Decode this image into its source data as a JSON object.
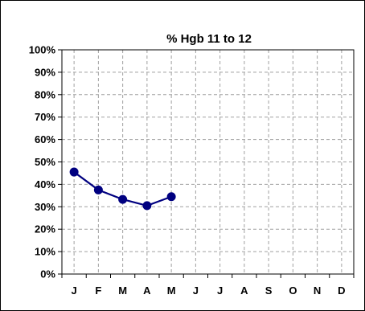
{
  "chart_data": {
    "type": "line",
    "title": "% Hgb 11 to 12",
    "xlabel": "",
    "ylabel": "",
    "categories": [
      "J",
      "F",
      "M",
      "A",
      "M",
      "J",
      "J",
      "A",
      "S",
      "O",
      "N",
      "D"
    ],
    "series": [
      {
        "values": [
          45.5,
          37.5,
          33.3,
          30.5,
          34.5,
          null,
          null,
          null,
          null,
          null,
          null,
          null
        ]
      }
    ],
    "ylim": [
      0,
      100
    ],
    "yticks": [
      "0%",
      "10%",
      "20%",
      "30%",
      "40%",
      "50%",
      "60%",
      "70%",
      "80%",
      "90%",
      "100%"
    ],
    "grid": true,
    "legend": "none",
    "colors": {
      "series": "#000080",
      "grid": "#a0a0a0",
      "frame": "#000000"
    }
  }
}
